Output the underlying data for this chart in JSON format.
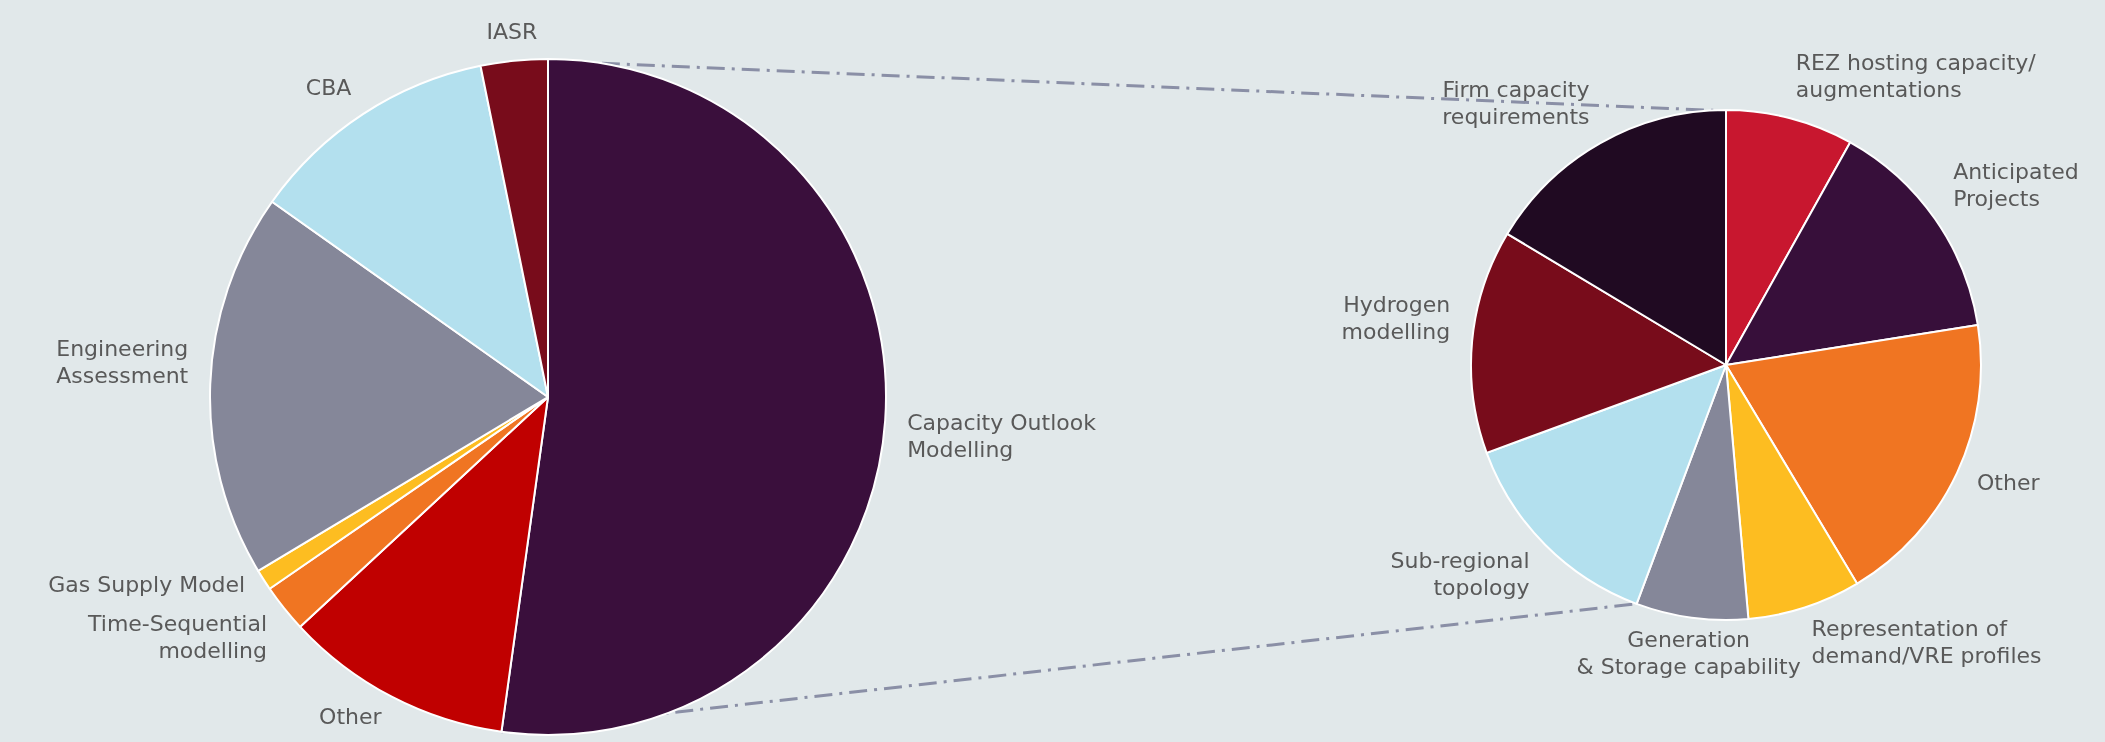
{
  "chart_data": [
    {
      "type": "pie",
      "categories": [
        "Capacity Outlook\nModelling",
        "Other",
        "Time-Sequential\nmodelling",
        "Gas Supply Model",
        "Engineering\nAssessment",
        "CBA",
        "IASR"
      ],
      "values": [
        52.2,
        10.9,
        2.3,
        1,
        18.4,
        12,
        3.2
      ],
      "colors": [
        "#3a0f3c",
        "#c00000",
        "#f07522",
        "#fdbd21",
        "#858799",
        "#b3e0ee",
        "#780c1b"
      ]
    },
    {
      "type": "pie",
      "categories": [
        "REZ hosting capacity/\naugmentations",
        "Anticipated\nProjects",
        "Other",
        "Representation of\ndemand/VRE profiles",
        "Generation\n& Storage capability",
        "Sub-regional\ntopology",
        "Hydrogen\nmodelling",
        "Firm capacity\nrequirements"
      ],
      "values": [
        8.1,
        14.4,
        18.9,
        7.2,
        7.1,
        13.7,
        14.2,
        16.4
      ],
      "colors": [
        "#c8172f",
        "#370f3a",
        "#f07522",
        "#fdbd21",
        "#858799",
        "#b3e0ee",
        "#780c1b",
        "#200a22"
      ]
    }
  ]
}
